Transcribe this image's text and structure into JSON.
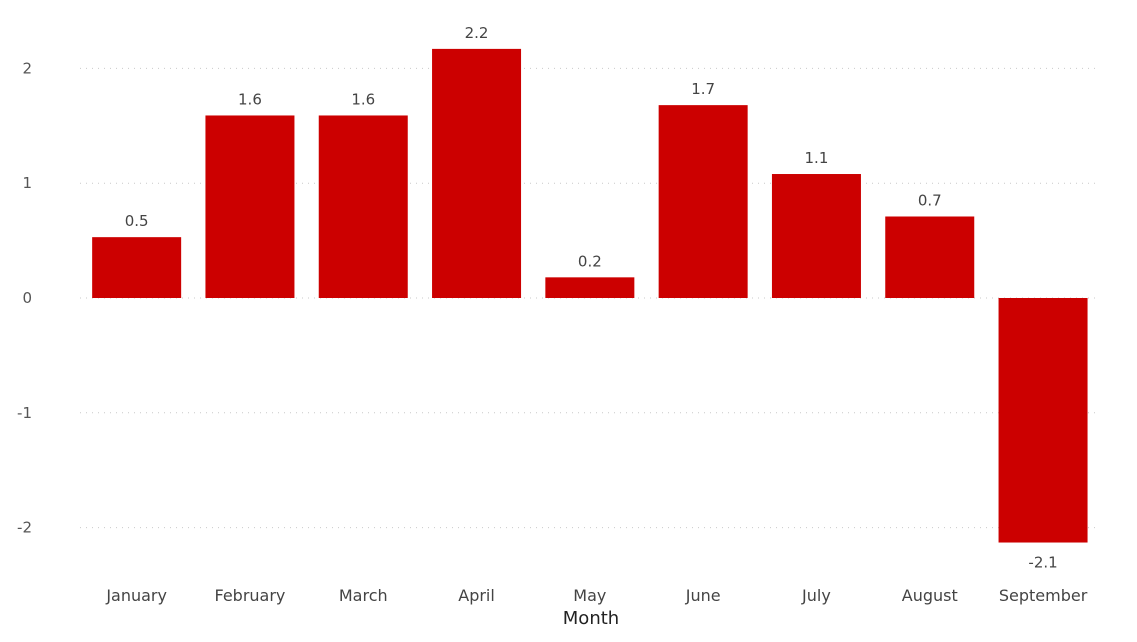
{
  "chart_data": {
    "type": "bar",
    "xlabel": "Month",
    "ylabel": "",
    "title": "",
    "categories": [
      "January",
      "February",
      "March",
      "April",
      "May",
      "June",
      "July",
      "August",
      "September"
    ],
    "values": [
      0.53,
      1.59,
      1.59,
      2.17,
      0.18,
      1.68,
      1.08,
      0.71,
      -2.13
    ],
    "data_labels": [
      "0.5",
      "1.6",
      "1.6",
      "2.2",
      "0.2",
      "1.7",
      "1.1",
      "0.7",
      "-2.1"
    ],
    "y_ticks": [
      2,
      1,
      0,
      -1,
      -2
    ],
    "y_tick_labels": [
      "2",
      "1",
      "0",
      "-1",
      "-2"
    ],
    "ylim": [
      -2.4,
      2.4
    ],
    "grid": true,
    "bar_color": "#cc0000"
  }
}
